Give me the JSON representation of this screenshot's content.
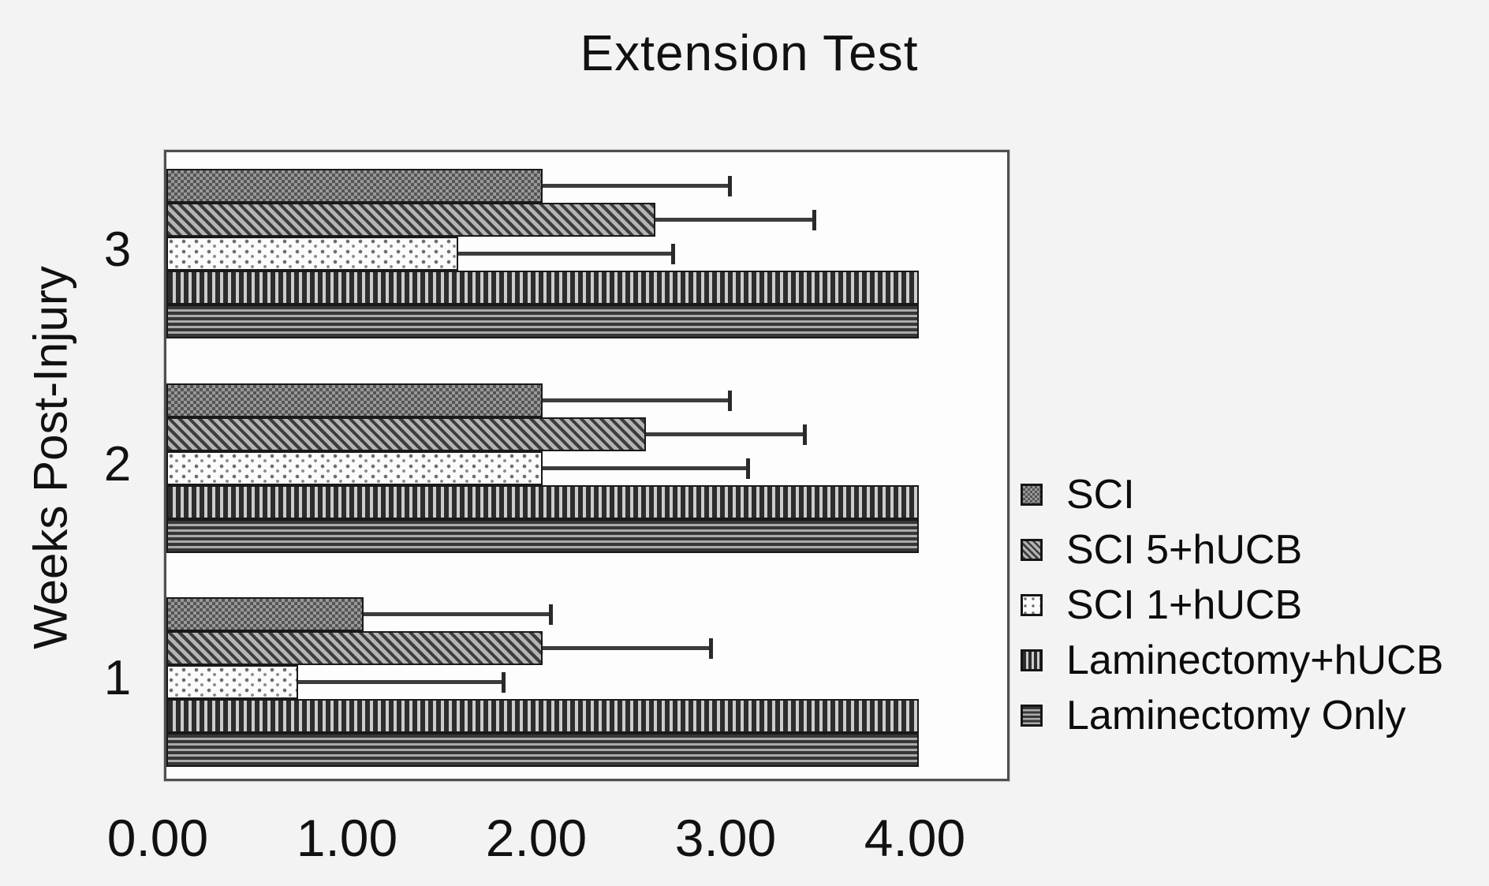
{
  "chart_data": {
    "type": "bar",
    "orientation": "horizontal",
    "title": "Extension Test",
    "xlabel": "",
    "ylabel": "Weeks Post-Injury",
    "categories": [
      "3",
      "2",
      "1"
    ],
    "x_tick_labels": [
      "0.00",
      "1.00",
      "2.00",
      "3.00",
      "4.00"
    ],
    "x_tick_values": [
      0,
      1,
      2,
      3,
      4
    ],
    "xlim": [
      0,
      4.5
    ],
    "grid": false,
    "legend_position": "right",
    "series": [
      {
        "name": "SCI",
        "pattern": "checker",
        "values": [
          2.0,
          2.0,
          1.05
        ],
        "error_to": [
          3.0,
          3.0,
          2.05
        ]
      },
      {
        "name": "SCI 5+hUCB",
        "pattern": "diagonal",
        "values": [
          2.6,
          2.55,
          2.0
        ],
        "error_to": [
          3.45,
          3.4,
          2.9
        ]
      },
      {
        "name": "SCI 1+hUCB",
        "pattern": "dots",
        "values": [
          1.55,
          2.0,
          0.7
        ],
        "error_to": [
          2.7,
          3.1,
          1.8
        ]
      },
      {
        "name": "Laminectomy+hUCB",
        "pattern": "vertical",
        "values": [
          4.0,
          4.0,
          4.0
        ],
        "error_to": [
          null,
          null,
          null
        ]
      },
      {
        "name": "Laminectomy Only",
        "pattern": "horizontal",
        "values": [
          4.0,
          4.0,
          4.0
        ],
        "error_to": [
          null,
          null,
          null
        ]
      }
    ]
  }
}
